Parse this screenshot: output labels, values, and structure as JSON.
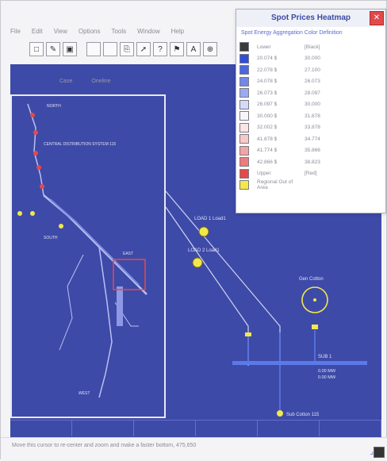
{
  "window": {
    "title": "Spot Prices Heatmap"
  },
  "menu": [
    "File",
    "Edit",
    "View",
    "Options",
    "Tools",
    "Window",
    "Help"
  ],
  "toolbar": {
    "icons": [
      "new-icon",
      "pencil-icon",
      "save-icon",
      "blank-icon",
      "blank-icon",
      "copy-icon",
      "pointer-icon",
      "question-icon",
      "flag-icon",
      "text-icon",
      "zoom-icon"
    ],
    "glyphs": [
      "□",
      "✎",
      "▣",
      "",
      "",
      "⎘",
      "➚",
      "?",
      "⚑",
      "A",
      "⊕"
    ]
  },
  "subtabs": [
    "Case",
    "Oneline"
  ],
  "legend": {
    "title": "Spot Prices Heatmap",
    "close_glyph": "✕",
    "menu_text": "Spot Energy Aggregation Color Definition",
    "rows": [
      {
        "color": "#3a3a3a",
        "col1": "Lower",
        "col2": "[Black]"
      },
      {
        "color": "#2f4fd8",
        "col1": "20.074 $",
        "col2": "30.000"
      },
      {
        "color": "#4b66e0",
        "col1": "22.078 $",
        "col2": "27.100"
      },
      {
        "color": "#7188e8",
        "col1": "24.078 $",
        "col2": "26.073"
      },
      {
        "color": "#9aaaf0",
        "col1": "26.073 $",
        "col2": "28.097"
      },
      {
        "color": "#d4daf8",
        "col1": "26.097 $",
        "col2": "30.000"
      },
      {
        "color": "#f6f6fa",
        "col1": "30.000 $",
        "col2": "31.878"
      },
      {
        "color": "#fbe4e4",
        "col1": "32.002 $",
        "col2": "33.878"
      },
      {
        "color": "#f8c8c8",
        "col1": "41.878 $",
        "col2": "34.774"
      },
      {
        "color": "#f3a4a4",
        "col1": "41.774 $",
        "col2": "35.866"
      },
      {
        "color": "#ee7c7c",
        "col1": "42.866 $",
        "col2": "38.823"
      },
      {
        "color": "#e44a4a",
        "col1": "Upper",
        "col2": "[Red]"
      },
      {
        "color": "#f2e84a",
        "col1": "Regional Out of Area",
        "col2": ""
      }
    ]
  },
  "diagram": {
    "overview_labels": [
      "CENTRAL DISTRIBUTION SYSTEM 115",
      "NORTH",
      "SOUTH",
      "EAST",
      "WEST"
    ],
    "gen_labels": [
      "LOAD 1 Load1",
      "LOAD 2 Load1"
    ],
    "gen_center_label": "Gen Cotton",
    "bus_label": "SUB 1",
    "bottom_label": "Sub Cotton 115",
    "value_labels": [
      "0.00 MW",
      "0.00 MW"
    ]
  },
  "status": {
    "text": "Move this cursor to re-center and zoom and make a faster bottom, 475,650"
  }
}
